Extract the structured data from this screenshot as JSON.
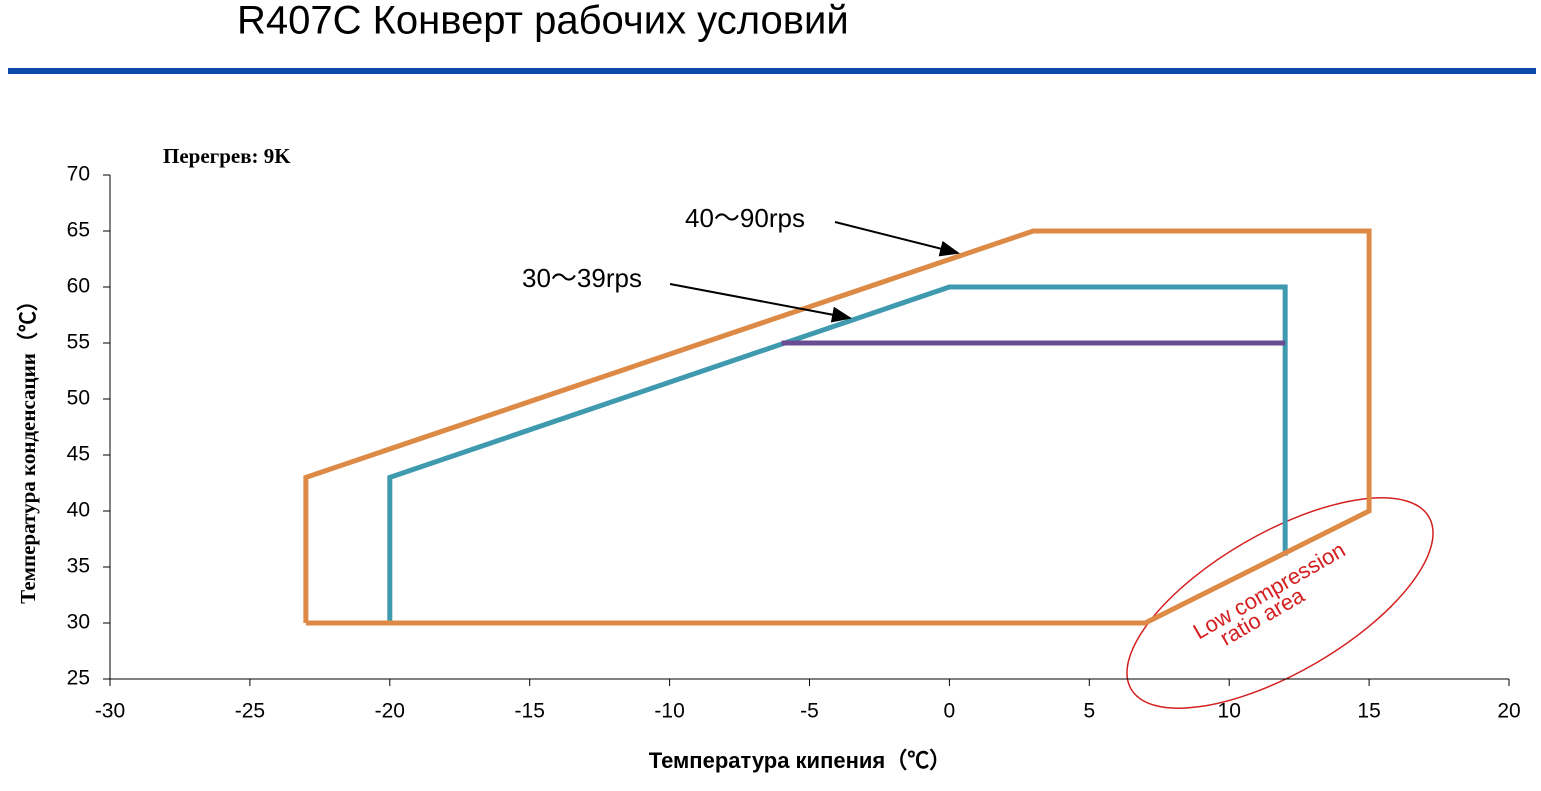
{
  "title": "R407C Конверт рабочих условий",
  "chart_data": {
    "type": "line",
    "annotation": "Перегрев: 9K",
    "region_label": [
      "Low compression",
      "ratio area"
    ],
    "xlabel": "Температура кипения（℃）",
    "ylabel": "Температура конденсации（℃）",
    "xlim": [
      -30,
      20
    ],
    "xticks": [
      -30,
      -25,
      -20,
      -15,
      -10,
      -5,
      0,
      5,
      10,
      15,
      20
    ],
    "ylim": [
      25,
      70
    ],
    "yticks": [
      25,
      30,
      35,
      40,
      45,
      50,
      55,
      60,
      65,
      70
    ],
    "grid": false,
    "series": [
      {
        "name": "30～39rps",
        "color": "#3f9ab0",
        "x": [
          -20,
          -20,
          0,
          12,
          12
        ],
        "y": [
          30,
          43,
          60,
          60,
          36
        ]
      },
      {
        "color": "#6a4c93",
        "x": [
          -6,
          12
        ],
        "y": [
          55,
          55
        ]
      },
      {
        "name": "40～90rps",
        "color": "#dc8a45",
        "x": [
          -23,
          -23,
          3,
          15,
          15,
          7,
          -23
        ],
        "y": [
          30,
          43,
          65,
          65,
          40,
          30,
          30
        ]
      }
    ]
  }
}
